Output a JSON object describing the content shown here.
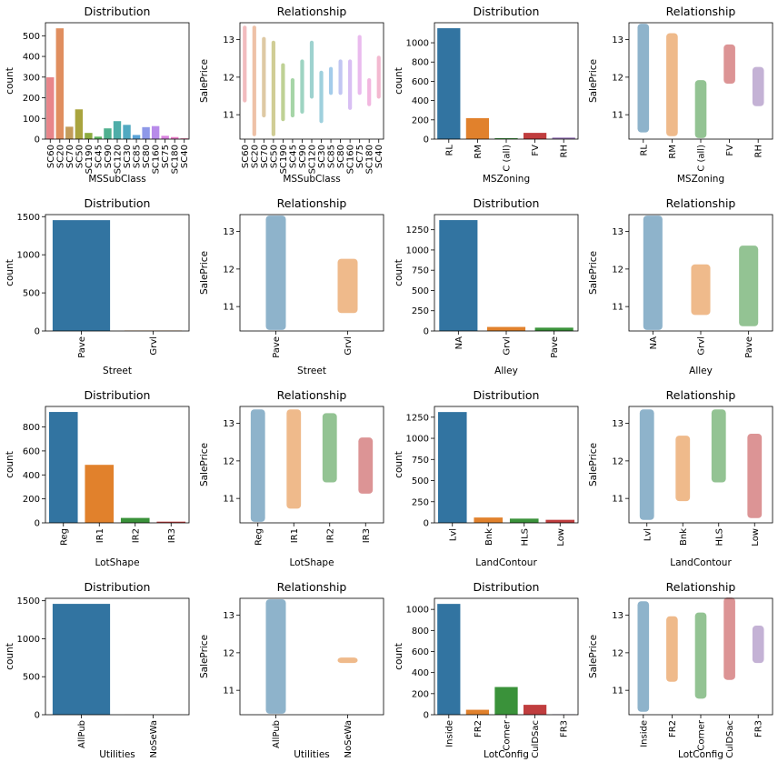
{
  "chart_data": [
    {
      "type": "bar",
      "title": "Distribution",
      "xlabel": "MSSubClass",
      "ylabel": "count",
      "categories": [
        "SC60",
        "SC20",
        "SC70",
        "SC50",
        "SC190",
        "SC45",
        "SC90",
        "SC120",
        "SC30",
        "SC85",
        "SC80",
        "SC160",
        "SC75",
        "SC180",
        "SC40"
      ],
      "values": [
        299,
        536,
        60,
        144,
        30,
        12,
        52,
        87,
        69,
        20,
        58,
        63,
        16,
        10,
        4
      ],
      "colors": [
        "#e8858a",
        "#e08e5f",
        "#c39c5a",
        "#a9a43e",
        "#8bab3e",
        "#5cb35f",
        "#4fb08f",
        "#4eada8",
        "#51a9c1",
        "#5aa3d8",
        "#8e98e8",
        "#b88bea",
        "#d983e0",
        "#e77cc6",
        "#ea80a9"
      ],
      "ylim": [
        0,
        563
      ],
      "yticks": [
        0,
        100,
        200,
        300,
        400,
        500
      ]
    },
    {
      "type": "strip",
      "title": "Relationship",
      "xlabel": "MSSubClass",
      "ylabel": "SalePrice",
      "categories": [
        "SC60",
        "SC20",
        "SC70",
        "SC50",
        "SC190",
        "SC45",
        "SC90",
        "SC120",
        "SC30",
        "SC85",
        "SC80",
        "SC160",
        "SC75",
        "SC180",
        "SC40"
      ],
      "low": [
        11.4,
        10.5,
        11.0,
        10.5,
        10.9,
        11.0,
        11.1,
        11.5,
        10.85,
        11.6,
        11.6,
        11.2,
        11.6,
        11.3,
        11.5
      ],
      "high": [
        13.3,
        13.3,
        13.0,
        12.9,
        12.3,
        11.9,
        12.4,
        12.9,
        12.1,
        12.2,
        12.4,
        12.4,
        13.05,
        11.9,
        12.5
      ],
      "colors": [
        "#e8858a",
        "#e08e5f",
        "#c39c5a",
        "#a9a43e",
        "#8bab3e",
        "#5cb35f",
        "#4fb08f",
        "#4eada8",
        "#51a9c1",
        "#5aa3d8",
        "#8e98e8",
        "#b88bea",
        "#d983e0",
        "#e77cc6",
        "#ea80a9"
      ],
      "ylim": [
        10.35,
        13.45
      ],
      "yticks": [
        11,
        12,
        13
      ]
    },
    {
      "type": "bar",
      "title": "Distribution",
      "xlabel": "MSZoning",
      "ylabel": "count",
      "categories": [
        "RL",
        "RM",
        "C (all)",
        "FV",
        "RH"
      ],
      "values": [
        1151,
        218,
        10,
        65,
        16
      ],
      "colors": [
        "#3274a1",
        "#e1812c",
        "#3a923a",
        "#c03d3e",
        "#9372b2"
      ],
      "ylim": [
        0,
        1208
      ],
      "yticks": [
        0,
        200,
        400,
        600,
        800,
        1000
      ]
    },
    {
      "type": "strip",
      "title": "Relationship",
      "xlabel": "MSZoning",
      "ylabel": "SalePrice",
      "categories": [
        "RL",
        "RM",
        "C (all)",
        "FV",
        "RH"
      ],
      "low": [
        10.6,
        10.5,
        10.45,
        11.9,
        11.3
      ],
      "high": [
        13.35,
        13.1,
        11.85,
        12.8,
        12.2
      ],
      "colors": [
        "#3274a1",
        "#e1812c",
        "#3a923a",
        "#c03d3e",
        "#9372b2"
      ],
      "ylim": [
        10.35,
        13.45
      ],
      "yticks": [
        11,
        12,
        13
      ]
    },
    {
      "type": "bar",
      "title": "Distribution",
      "xlabel": "Street",
      "ylabel": "count",
      "categories": [
        "Pave",
        "Grvl"
      ],
      "values": [
        1454,
        6
      ],
      "colors": [
        "#3274a1",
        "#e1812c"
      ],
      "ylim": [
        0,
        1527
      ],
      "yticks": [
        0,
        500,
        1000,
        1500
      ]
    },
    {
      "type": "strip",
      "title": "Relationship",
      "xlabel": "Street",
      "ylabel": "SalePrice",
      "categories": [
        "Pave",
        "Grvl"
      ],
      "low": [
        10.45,
        10.9
      ],
      "high": [
        13.35,
        12.2
      ],
      "colors": [
        "#3274a1",
        "#e1812c"
      ],
      "ylim": [
        10.35,
        13.45
      ],
      "yticks": [
        11,
        12,
        13
      ]
    },
    {
      "type": "bar",
      "title": "Distribution",
      "xlabel": "Alley",
      "ylabel": "count",
      "categories": [
        "NA",
        "Grvl",
        "Pave"
      ],
      "values": [
        1369,
        50,
        41
      ],
      "colors": [
        "#3274a1",
        "#e1812c",
        "#3a923a"
      ],
      "ylim": [
        0,
        1437
      ],
      "yticks": [
        0,
        250,
        500,
        750,
        1000,
        1250
      ]
    },
    {
      "type": "strip",
      "title": "Relationship",
      "xlabel": "Alley",
      "ylabel": "SalePrice",
      "categories": [
        "NA",
        "Grvl",
        "Pave"
      ],
      "low": [
        10.45,
        10.85,
        10.55
      ],
      "high": [
        13.35,
        12.05,
        12.55
      ],
      "colors": [
        "#3274a1",
        "#e1812c",
        "#3a923a"
      ],
      "ylim": [
        10.35,
        13.45
      ],
      "yticks": [
        11,
        12,
        13
      ]
    },
    {
      "type": "bar",
      "title": "Distribution",
      "xlabel": "LotShape",
      "ylabel": "count",
      "categories": [
        "Reg",
        "IR1",
        "IR2",
        "IR3"
      ],
      "values": [
        925,
        484,
        41,
        10
      ],
      "colors": [
        "#3274a1",
        "#e1812c",
        "#3a923a",
        "#c03d3e"
      ],
      "ylim": [
        0,
        971
      ],
      "yticks": [
        0,
        200,
        400,
        600,
        800
      ]
    },
    {
      "type": "strip",
      "title": "Relationship",
      "xlabel": "LotShape",
      "ylabel": "SalePrice",
      "categories": [
        "Reg",
        "IR1",
        "IR2",
        "IR3"
      ],
      "low": [
        10.45,
        10.8,
        11.5,
        11.2
      ],
      "high": [
        13.3,
        13.3,
        13.2,
        12.55
      ],
      "colors": [
        "#3274a1",
        "#e1812c",
        "#3a923a",
        "#c03d3e"
      ],
      "ylim": [
        10.35,
        13.45
      ],
      "yticks": [
        11,
        12,
        13
      ]
    },
    {
      "type": "bar",
      "title": "Distribution",
      "xlabel": "LandContour",
      "ylabel": "count",
      "categories": [
        "Lvl",
        "Bnk",
        "HLS",
        "Low"
      ],
      "values": [
        1311,
        63,
        50,
        36
      ],
      "colors": [
        "#3274a1",
        "#e1812c",
        "#3a923a",
        "#c03d3e"
      ],
      "ylim": [
        0,
        1377
      ],
      "yticks": [
        0,
        250,
        500,
        750,
        1000,
        1250
      ]
    },
    {
      "type": "strip",
      "title": "Relationship",
      "xlabel": "LandContour",
      "ylabel": "SalePrice",
      "categories": [
        "Lvl",
        "Bnk",
        "HLS",
        "Low"
      ],
      "low": [
        10.5,
        11.0,
        11.5,
        10.55
      ],
      "high": [
        13.3,
        12.6,
        13.3,
        12.65
      ],
      "colors": [
        "#3274a1",
        "#e1812c",
        "#3a923a",
        "#c03d3e"
      ],
      "ylim": [
        10.35,
        13.45
      ],
      "yticks": [
        11,
        12,
        13
      ]
    },
    {
      "type": "bar",
      "title": "Distribution",
      "xlabel": "Utilities",
      "ylabel": "count",
      "categories": [
        "AllPub",
        "NoSeWa"
      ],
      "values": [
        1459,
        1
      ],
      "colors": [
        "#3274a1",
        "#e1812c"
      ],
      "ylim": [
        0,
        1532
      ],
      "yticks": [
        0,
        500,
        1000,
        1500
      ]
    },
    {
      "type": "strip",
      "title": "Relationship",
      "xlabel": "Utilities",
      "ylabel": "SalePrice",
      "categories": [
        "AllPub",
        "NoSeWa"
      ],
      "low": [
        10.45,
        11.8
      ],
      "high": [
        13.35,
        11.8
      ],
      "colors": [
        "#3274a1",
        "#e1812c"
      ],
      "ylim": [
        10.35,
        13.45
      ],
      "yticks": [
        11,
        12,
        13
      ]
    },
    {
      "type": "bar",
      "title": "Distribution",
      "xlabel": "LotConfig",
      "ylabel": "count",
      "categories": [
        "Inside",
        "FR2",
        "Corner",
        "CulDSac",
        "FR3"
      ],
      "values": [
        1052,
        47,
        263,
        94,
        4
      ],
      "colors": [
        "#3274a1",
        "#e1812c",
        "#3a923a",
        "#c03d3e",
        "#9372b2"
      ],
      "ylim": [
        0,
        1105
      ],
      "yticks": [
        0,
        200,
        400,
        600,
        800,
        1000
      ]
    },
    {
      "type": "strip",
      "title": "Relationship",
      "xlabel": "LotConfig",
      "ylabel": "SalePrice",
      "categories": [
        "Inside",
        "FR2",
        "Corner",
        "CulDSac",
        "FR3"
      ],
      "low": [
        10.5,
        11.3,
        10.85,
        11.35,
        11.8
      ],
      "high": [
        13.3,
        12.9,
        13.0,
        13.4,
        12.65
      ],
      "colors": [
        "#3274a1",
        "#e1812c",
        "#3a923a",
        "#c03d3e",
        "#9372b2"
      ],
      "ylim": [
        10.35,
        13.45
      ],
      "yticks": [
        11,
        12,
        13
      ]
    }
  ]
}
